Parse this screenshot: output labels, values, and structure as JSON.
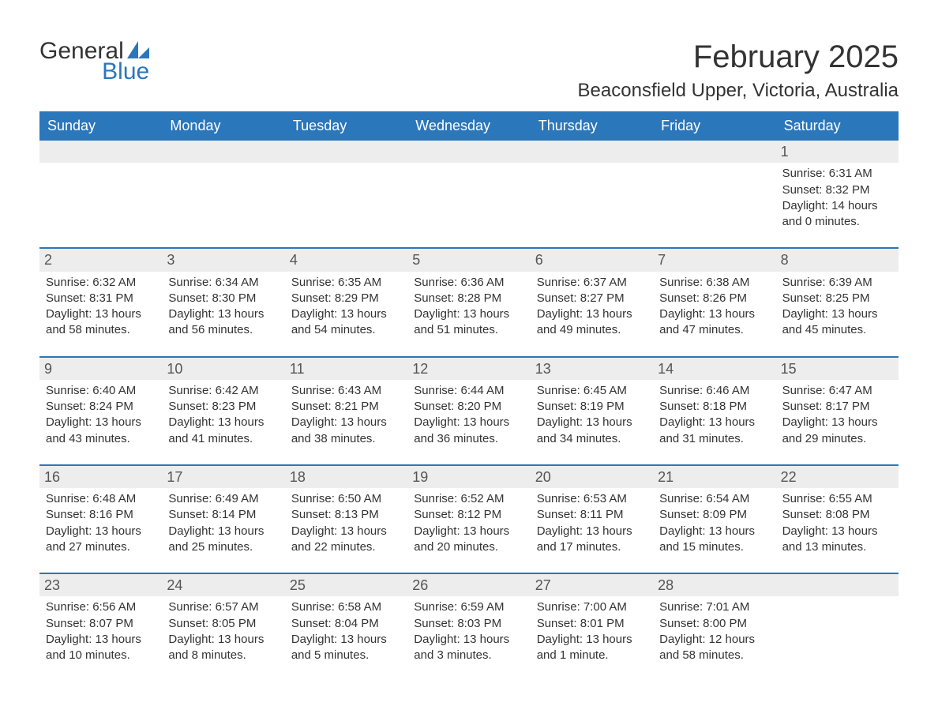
{
  "logo": {
    "text1": "General",
    "text2": "Blue",
    "color_general": "#333333",
    "color_blue": "#2a77bb"
  },
  "title": "February 2025",
  "location": "Beaconsfield Upper, Victoria, Australia",
  "colors": {
    "header_bg": "#2a77bb",
    "header_text": "#ffffff",
    "daynum_bg": "#ededed",
    "text": "#333333",
    "border": "#2a77bb",
    "page_bg": "#ffffff"
  },
  "typography": {
    "title_fontsize": 40,
    "location_fontsize": 24,
    "weekday_fontsize": 18,
    "body_fontsize": 15,
    "font_family": "Arial"
  },
  "layout": {
    "columns": 7,
    "start_day_index": 6
  },
  "weekdays": [
    "Sunday",
    "Monday",
    "Tuesday",
    "Wednesday",
    "Thursday",
    "Friday",
    "Saturday"
  ],
  "days": [
    {
      "n": 1,
      "sunrise": "6:31 AM",
      "sunset": "8:32 PM",
      "daylight": "14 hours and 0 minutes."
    },
    {
      "n": 2,
      "sunrise": "6:32 AM",
      "sunset": "8:31 PM",
      "daylight": "13 hours and 58 minutes."
    },
    {
      "n": 3,
      "sunrise": "6:34 AM",
      "sunset": "8:30 PM",
      "daylight": "13 hours and 56 minutes."
    },
    {
      "n": 4,
      "sunrise": "6:35 AM",
      "sunset": "8:29 PM",
      "daylight": "13 hours and 54 minutes."
    },
    {
      "n": 5,
      "sunrise": "6:36 AM",
      "sunset": "8:28 PM",
      "daylight": "13 hours and 51 minutes."
    },
    {
      "n": 6,
      "sunrise": "6:37 AM",
      "sunset": "8:27 PM",
      "daylight": "13 hours and 49 minutes."
    },
    {
      "n": 7,
      "sunrise": "6:38 AM",
      "sunset": "8:26 PM",
      "daylight": "13 hours and 47 minutes."
    },
    {
      "n": 8,
      "sunrise": "6:39 AM",
      "sunset": "8:25 PM",
      "daylight": "13 hours and 45 minutes."
    },
    {
      "n": 9,
      "sunrise": "6:40 AM",
      "sunset": "8:24 PM",
      "daylight": "13 hours and 43 minutes."
    },
    {
      "n": 10,
      "sunrise": "6:42 AM",
      "sunset": "8:23 PM",
      "daylight": "13 hours and 41 minutes."
    },
    {
      "n": 11,
      "sunrise": "6:43 AM",
      "sunset": "8:21 PM",
      "daylight": "13 hours and 38 minutes."
    },
    {
      "n": 12,
      "sunrise": "6:44 AM",
      "sunset": "8:20 PM",
      "daylight": "13 hours and 36 minutes."
    },
    {
      "n": 13,
      "sunrise": "6:45 AM",
      "sunset": "8:19 PM",
      "daylight": "13 hours and 34 minutes."
    },
    {
      "n": 14,
      "sunrise": "6:46 AM",
      "sunset": "8:18 PM",
      "daylight": "13 hours and 31 minutes."
    },
    {
      "n": 15,
      "sunrise": "6:47 AM",
      "sunset": "8:17 PM",
      "daylight": "13 hours and 29 minutes."
    },
    {
      "n": 16,
      "sunrise": "6:48 AM",
      "sunset": "8:16 PM",
      "daylight": "13 hours and 27 minutes."
    },
    {
      "n": 17,
      "sunrise": "6:49 AM",
      "sunset": "8:14 PM",
      "daylight": "13 hours and 25 minutes."
    },
    {
      "n": 18,
      "sunrise": "6:50 AM",
      "sunset": "8:13 PM",
      "daylight": "13 hours and 22 minutes."
    },
    {
      "n": 19,
      "sunrise": "6:52 AM",
      "sunset": "8:12 PM",
      "daylight": "13 hours and 20 minutes."
    },
    {
      "n": 20,
      "sunrise": "6:53 AM",
      "sunset": "8:11 PM",
      "daylight": "13 hours and 17 minutes."
    },
    {
      "n": 21,
      "sunrise": "6:54 AM",
      "sunset": "8:09 PM",
      "daylight": "13 hours and 15 minutes."
    },
    {
      "n": 22,
      "sunrise": "6:55 AM",
      "sunset": "8:08 PM",
      "daylight": "13 hours and 13 minutes."
    },
    {
      "n": 23,
      "sunrise": "6:56 AM",
      "sunset": "8:07 PM",
      "daylight": "13 hours and 10 minutes."
    },
    {
      "n": 24,
      "sunrise": "6:57 AM",
      "sunset": "8:05 PM",
      "daylight": "13 hours and 8 minutes."
    },
    {
      "n": 25,
      "sunrise": "6:58 AM",
      "sunset": "8:04 PM",
      "daylight": "13 hours and 5 minutes."
    },
    {
      "n": 26,
      "sunrise": "6:59 AM",
      "sunset": "8:03 PM",
      "daylight": "13 hours and 3 minutes."
    },
    {
      "n": 27,
      "sunrise": "7:00 AM",
      "sunset": "8:01 PM",
      "daylight": "13 hours and 1 minute."
    },
    {
      "n": 28,
      "sunrise": "7:01 AM",
      "sunset": "8:00 PM",
      "daylight": "12 hours and 58 minutes."
    }
  ],
  "labels": {
    "sunrise": "Sunrise: ",
    "sunset": "Sunset: ",
    "daylight": "Daylight: "
  }
}
